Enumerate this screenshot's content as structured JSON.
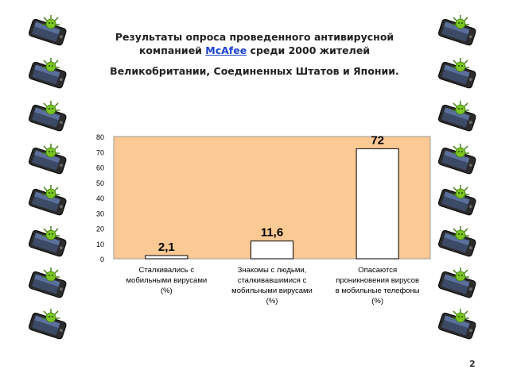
{
  "title": {
    "line1": "Результаты опроса проведенного антивирусной",
    "line2_pre": "компанией ",
    "line2_brand": "McAfee",
    "line2_post": " среди 2000 жителей",
    "line3": "Великобритании, Соединенных Штатов и Японии."
  },
  "chart_data": {
    "type": "bar",
    "categories": [
      [
        "Сталкивались с",
        "мобильными вирусами",
        "(%)"
      ],
      [
        "Знакомы с людьми,",
        "сталкивавшимися с",
        "мобильными вирусами",
        "(%)"
      ],
      [
        "Опасаются",
        "проникновения вирусов",
        "в мобильные телефоны",
        "(%)"
      ]
    ],
    "values": [
      2.1,
      11.6,
      72
    ],
    "data_labels": [
      "2,1",
      "11,6",
      "72"
    ],
    "yticks": [
      "0",
      "10",
      "20",
      "30",
      "40",
      "50",
      "60",
      "70",
      "80"
    ],
    "ylim": [
      0,
      80
    ],
    "grid": false,
    "colors": {
      "plot_bg": "#FAC994",
      "bar_fill": "#FFFFFF",
      "bar_stroke": "#000000",
      "brand": "#1a3fd0",
      "phone_body": "#2b2b2b",
      "virus": "#7cc520"
    }
  },
  "decor": {
    "icon": "phone-with-virus-icon",
    "count_per_side": 8
  },
  "page_number": "2"
}
